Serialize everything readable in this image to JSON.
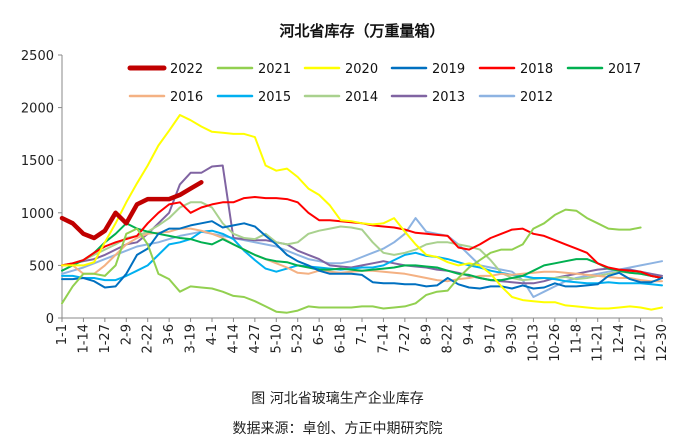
{
  "caption": "图    河北省玻璃生产企业库存",
  "source": "数据来源：卓创、方正中期研究院",
  "chart_data": {
    "type": "line",
    "title": "河北省库存（万重量箱）",
    "xlabel": "",
    "ylabel": "",
    "ylim": [
      0,
      2500
    ],
    "yticks": [
      0,
      500,
      1000,
      1500,
      2000,
      2500
    ],
    "x_tick_labels": [
      "1-1",
      "1-14",
      "1-27",
      "2-9",
      "2-22",
      "3-6",
      "3-19",
      "4-1",
      "4-14",
      "4-27",
      "5-10",
      "5-23",
      "6-5",
      "6-18",
      "7-1",
      "7-14",
      "7-27",
      "8-9",
      "8-22",
      "9-4",
      "9-17",
      "9-30",
      "10-13",
      "10-26",
      "11-8",
      "11-21",
      "12-4",
      "12-17",
      "12-30"
    ],
    "grid": false,
    "legend_position": "top",
    "series": [
      {
        "name": "2022",
        "color": "#c00000",
        "bold": true,
        "values": [
          950,
          900,
          800,
          760,
          830,
          1000,
          900,
          1080,
          1130,
          1130,
          1130,
          1170,
          1230,
          1290
        ]
      },
      {
        "name": "2021",
        "color": "#92d050",
        "values": [
          140,
          300,
          420,
          420,
          400,
          500,
          800,
          850,
          700,
          420,
          370,
          250,
          300,
          290,
          280,
          250,
          210,
          200,
          160,
          110,
          60,
          50,
          70,
          110,
          100,
          100,
          100,
          100,
          110,
          110,
          90,
          100,
          110,
          140,
          220,
          250,
          260,
          380,
          480,
          550,
          620,
          650,
          650,
          700,
          850,
          900,
          980,
          1030,
          1020,
          950,
          900,
          850,
          840,
          840,
          860
        ]
      },
      {
        "name": "2020",
        "color": "#ffff00",
        "values": [
          500,
          500,
          500,
          530,
          720,
          900,
          1100,
          1280,
          1450,
          1640,
          1780,
          1930,
          1880,
          1820,
          1770,
          1760,
          1750,
          1750,
          1720,
          1450,
          1400,
          1420,
          1340,
          1230,
          1170,
          1070,
          930,
          920,
          900,
          890,
          900,
          950,
          820,
          700,
          600,
          580,
          530,
          500,
          520,
          500,
          420,
          300,
          200,
          170,
          160,
          150,
          150,
          120,
          110,
          100,
          90,
          90,
          100,
          110,
          100,
          80,
          100
        ]
      },
      {
        "name": "2019",
        "color": "#0070c0",
        "values": [
          370,
          370,
          380,
          350,
          290,
          300,
          420,
          600,
          660,
          800,
          850,
          850,
          880,
          900,
          920,
          860,
          880,
          900,
          870,
          780,
          700,
          600,
          540,
          500,
          450,
          420,
          420,
          420,
          410,
          340,
          330,
          330,
          320,
          320,
          300,
          310,
          380,
          320,
          290,
          280,
          300,
          300,
          280,
          310,
          280,
          290,
          330,
          300,
          300,
          310,
          320,
          400,
          430,
          370,
          340,
          340,
          380
        ]
      },
      {
        "name": "2018",
        "color": "#ff0000",
        "values": [
          500,
          520,
          550,
          620,
          680,
          720,
          750,
          780,
          900,
          1000,
          1080,
          1100,
          1000,
          1050,
          1080,
          1100,
          1100,
          1140,
          1150,
          1140,
          1140,
          1130,
          1100,
          1000,
          930,
          930,
          920,
          910,
          900,
          880,
          870,
          860,
          840,
          810,
          800,
          790,
          780,
          670,
          650,
          700,
          760,
          800,
          840,
          850,
          800,
          780,
          740,
          700,
          660,
          620,
          520,
          480,
          460,
          450,
          440,
          400,
          380
        ]
      },
      {
        "name": "2017",
        "color": "#00b050",
        "values": [
          450,
          500,
          550,
          620,
          720,
          800,
          900,
          850,
          820,
          800,
          780,
          760,
          750,
          720,
          700,
          750,
          700,
          650,
          600,
          560,
          540,
          530,
          500,
          480,
          460,
          460,
          470,
          460,
          450,
          460,
          470,
          480,
          500,
          500,
          490,
          480,
          450,
          420,
          410,
          380,
          360,
          360,
          380,
          400,
          450,
          500,
          520,
          540,
          560,
          560,
          520,
          470,
          450,
          430,
          420,
          400,
          380
        ]
      },
      {
        "name": "2016",
        "color": "#f4b183",
        "values": [
          500,
          500,
          420,
          420,
          500,
          600,
          700,
          760,
          800,
          810,
          820,
          850,
          850,
          830,
          800,
          760,
          700,
          650,
          600,
          560,
          520,
          480,
          430,
          420,
          450,
          440,
          430,
          440,
          450,
          450,
          440,
          430,
          420,
          400,
          380,
          360,
          350,
          370,
          380,
          400,
          400,
          420,
          410,
          420,
          430,
          440,
          440,
          430,
          420,
          410,
          400,
          390,
          380,
          380,
          360,
          350,
          350
        ]
      },
      {
        "name": "2015",
        "color": "#00b0f0",
        "values": [
          400,
          400,
          380,
          380,
          360,
          360,
          400,
          450,
          500,
          600,
          700,
          720,
          750,
          820,
          830,
          800,
          750,
          640,
          550,
          470,
          440,
          470,
          500,
          490,
          480,
          470,
          460,
          470,
          480,
          480,
          500,
          550,
          600,
          620,
          590,
          580,
          560,
          530,
          500,
          480,
          450,
          430,
          410,
          400,
          380,
          380,
          370,
          350,
          340,
          330,
          330,
          340,
          330,
          330,
          330,
          320,
          310
        ]
      },
      {
        "name": "2014",
        "color": "#a9d18e",
        "values": [
          500,
          520,
          550,
          600,
          650,
          700,
          760,
          780,
          820,
          880,
          950,
          1050,
          1100,
          1100,
          1050,
          900,
          800,
          760,
          750,
          800,
          720,
          700,
          720,
          800,
          830,
          850,
          870,
          860,
          840,
          720,
          620,
          600,
          620,
          650,
          700,
          720,
          720,
          700,
          680,
          650,
          550,
          430,
          380,
          360,
          370,
          380,
          380,
          390,
          370,
          380,
          400,
          420,
          440,
          430,
          420,
          400,
          380
        ]
      },
      {
        "name": "2013",
        "color": "#8064a2",
        "values": [
          500,
          520,
          540,
          560,
          600,
          650,
          700,
          720,
          800,
          900,
          1000,
          1270,
          1380,
          1380,
          1440,
          1450,
          760,
          750,
          740,
          740,
          720,
          700,
          640,
          600,
          560,
          500,
          490,
          480,
          500,
          520,
          540,
          520,
          500,
          490,
          480,
          460,
          450,
          430,
          400,
          380,
          360,
          350,
          340,
          330,
          330,
          350,
          380,
          400,
          420,
          440,
          460,
          470,
          460,
          460,
          440,
          420,
          400
        ]
      },
      {
        "name": "2012",
        "color": "#8db3e2",
        "values": [
          420,
          450,
          480,
          520,
          560,
          600,
          640,
          680,
          700,
          720,
          750,
          780,
          800,
          820,
          800,
          780,
          760,
          740,
          720,
          700,
          680,
          640,
          600,
          560,
          540,
          520,
          520,
          540,
          580,
          620,
          660,
          720,
          800,
          950,
          820,
          800,
          780,
          700,
          600,
          500,
          480,
          460,
          440,
          360,
          200,
          250,
          300,
          350,
          380,
          400,
          420,
          440,
          460,
          480,
          500,
          520,
          540
        ]
      }
    ]
  }
}
